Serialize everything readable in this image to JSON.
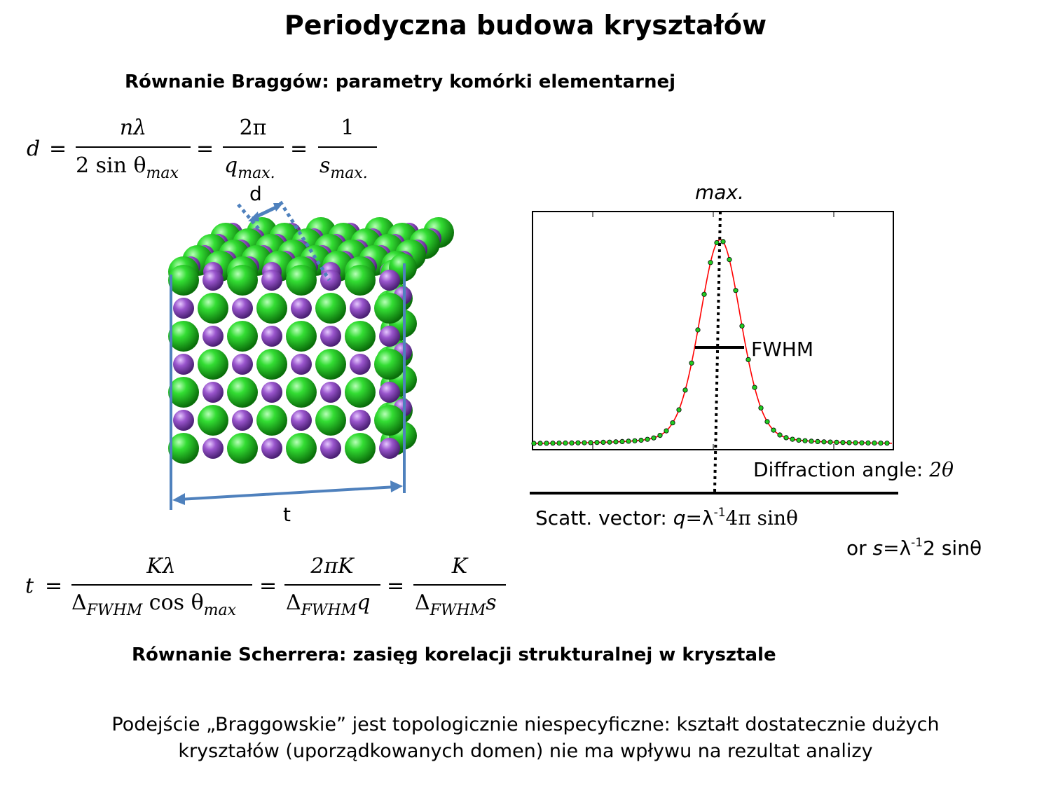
{
  "title": "Periodyczna budowa kryształów",
  "bragg": {
    "heading": "Równanie Braggów: parametry komórki elementarnej",
    "lhs": "d",
    "eq": "=",
    "f1_num": "nλ",
    "f1_den_a": "2 sin θ",
    "f1_den_sub": "max",
    "f2_num": "2π",
    "f2_den_a": "q",
    "f2_den_sub": "max.",
    "f3_num": "1",
    "f3_den_a": "s",
    "f3_den_sub": "max."
  },
  "scherrer": {
    "heading": "Równanie Scherrera: zasięg korelacji strukturalnej w krysztale",
    "lhs": "t",
    "eq": "=",
    "f1_num": "Kλ",
    "f1_den_a": "Δ",
    "f1_den_sub": "FWHM",
    "f1_den_b": " cos θ",
    "f1_den_sub2": "max",
    "f2_num": "2πK",
    "f2_den_a": "Δ",
    "f2_den_sub": "FWHM",
    "f2_den_b": "q",
    "f3_num": "K",
    "f3_den_a": "Δ",
    "f3_den_sub": "FWHM",
    "f3_den_b": "s"
  },
  "crystal": {
    "d_label": "d",
    "t_label": "t",
    "colors": {
      "green": "#22cc22",
      "purple": "#9955cc",
      "arrow": "#4f81bd"
    }
  },
  "plot": {
    "max_label": "max.",
    "fwhm_label": "FWHM",
    "xaxis_label": "Diffraction angle: ",
    "xaxis_symbol": "2θ",
    "scatt_label": "Scatt. vector: ",
    "scatt_formula_q": "q",
    "scatt_formula_rest": "=λ",
    "scatt_exp": "-1",
    "scatt_tail": "4π sinθ",
    "or_label": "or ",
    "or_s": "s",
    "or_rest": "=λ",
    "or_exp": "-1",
    "or_tail": "2 sinθ",
    "colors": {
      "curve": "#ff0000",
      "points": "#22cc22"
    }
  },
  "conclusion": {
    "line1": "Podejście „Braggowskie” jest topologicznie niespecyficzne: kształt dostatecznie dużych",
    "line2": "kryształów (uporządkowanych domen) nie ma wpływu na rezultat analizy"
  }
}
